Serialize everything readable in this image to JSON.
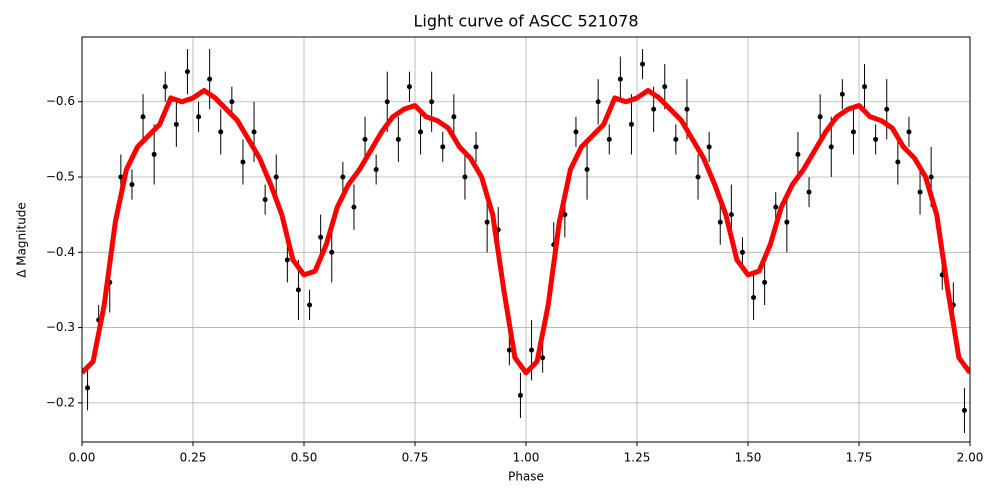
{
  "chart_data": {
    "type": "line",
    "title": "Light curve of ASCC 521078",
    "x_label": "Phase",
    "y_label": "Δ Magnitude",
    "xlim": [
      0,
      2
    ],
    "ylim": [
      -0.148,
      -0.686
    ],
    "xticks": [
      {
        "value": 0,
        "label": "0.00"
      },
      {
        "value": 0.25,
        "label": "0.25"
      },
      {
        "value": 0.5,
        "label": "0.50"
      },
      {
        "value": 0.75,
        "label": "0.75"
      },
      {
        "value": 1,
        "label": "1.00"
      },
      {
        "value": 1.25,
        "label": "1.25"
      },
      {
        "value": 1.5,
        "label": "1.50"
      },
      {
        "value": 1.75,
        "label": "1.75"
      },
      {
        "value": 2,
        "label": "2.00"
      }
    ],
    "yticks": [
      {
        "value": -0.6,
        "label": "−0.6"
      },
      {
        "value": -0.5,
        "label": "−0.5"
      },
      {
        "value": -0.4,
        "label": "−0.4"
      },
      {
        "value": -0.3,
        "label": "−0.3"
      },
      {
        "value": -0.2,
        "label": "−0.2"
      }
    ],
    "grid": true,
    "series": [
      {
        "type": "errorbar",
        "color": "#000000",
        "x": [
          0.0125,
          0.0375,
          0.0625,
          0.0875,
          0.1125,
          0.1375,
          0.1625,
          0.1875,
          0.2125,
          0.2375,
          0.2625,
          0.2875,
          0.3125,
          0.3375,
          0.3625,
          0.3875,
          0.4125,
          0.4375,
          0.4625,
          0.4875,
          0.5125,
          0.5375,
          0.5625,
          0.5875,
          0.6125,
          0.6375,
          0.6625,
          0.6875,
          0.7125,
          0.7375,
          0.7625,
          0.7875,
          0.8125,
          0.8375,
          0.8625,
          0.8875,
          0.9125,
          0.9375,
          0.9625,
          0.9875,
          1.0125,
          1.0375,
          1.0625,
          1.0875,
          1.1125,
          1.1375,
          1.1625,
          1.1875,
          1.2125,
          1.2375,
          1.2625,
          1.2875,
          1.3125,
          1.3375,
          1.3625,
          1.3875,
          1.4125,
          1.4375,
          1.4625,
          1.4875,
          1.5125,
          1.5375,
          1.5625,
          1.5875,
          1.6125,
          1.6375,
          1.6625,
          1.6875,
          1.7125,
          1.7375,
          1.7625,
          1.7875,
          1.8125,
          1.8375,
          1.8625,
          1.8875,
          1.9125,
          1.9375,
          1.9625,
          1.9875
        ],
        "values": [
          -0.22,
          -0.31,
          -0.36,
          -0.5,
          -0.49,
          -0.58,
          -0.53,
          -0.62,
          -0.57,
          -0.64,
          -0.58,
          -0.63,
          -0.56,
          -0.6,
          -0.52,
          -0.56,
          -0.47,
          -0.5,
          -0.39,
          -0.35,
          -0.33,
          -0.42,
          -0.4,
          -0.5,
          -0.46,
          -0.55,
          -0.51,
          -0.6,
          -0.55,
          -0.62,
          -0.56,
          -0.6,
          -0.54,
          -0.58,
          -0.5,
          -0.54,
          -0.44,
          -0.43,
          -0.27,
          -0.21,
          -0.27,
          -0.26,
          -0.41,
          -0.45,
          -0.56,
          -0.51,
          -0.6,
          -0.55,
          -0.63,
          -0.57,
          -0.65,
          -0.59,
          -0.62,
          -0.55,
          -0.59,
          -0.5,
          -0.54,
          -0.44,
          -0.45,
          -0.4,
          -0.34,
          -0.36,
          -0.46,
          -0.44,
          -0.53,
          -0.48,
          -0.58,
          -0.54,
          -0.61,
          -0.56,
          -0.62,
          -0.55,
          -0.59,
          -0.52,
          -0.56,
          -0.48,
          -0.5,
          -0.37,
          -0.33,
          -0.19
        ],
        "errors": [
          0.03,
          0.02,
          0.04,
          0.03,
          0.02,
          0.03,
          0.04,
          0.02,
          0.03,
          0.03,
          0.02,
          0.04,
          0.03,
          0.02,
          0.03,
          0.04,
          0.02,
          0.03,
          0.03,
          0.04,
          0.02,
          0.03,
          0.04,
          0.02,
          0.03,
          0.03,
          0.02,
          0.04,
          0.03,
          0.02,
          0.03,
          0.04,
          0.02,
          0.03,
          0.03,
          0.02,
          0.04,
          0.03,
          0.02,
          0.03,
          0.04,
          0.02,
          0.03,
          0.03,
          0.02,
          0.04,
          0.03,
          0.02,
          0.03,
          0.04,
          0.02,
          0.03,
          0.03,
          0.02,
          0.04,
          0.03,
          0.02,
          0.03,
          0.04,
          0.02,
          0.03,
          0.03,
          0.02,
          0.04,
          0.03,
          0.02,
          0.03,
          0.04,
          0.02,
          0.03,
          0.03,
          0.02,
          0.04,
          0.03,
          0.02,
          0.03,
          0.04,
          0.02,
          0.03,
          0.03
        ]
      },
      {
        "type": "line",
        "color": "#ff0000",
        "x": [
          0,
          0.025,
          0.05,
          0.075,
          0.1,
          0.125,
          0.15,
          0.175,
          0.2,
          0.225,
          0.25,
          0.275,
          0.3,
          0.325,
          0.35,
          0.375,
          0.4,
          0.425,
          0.45,
          0.475,
          0.5,
          0.525,
          0.55,
          0.575,
          0.6,
          0.625,
          0.65,
          0.675,
          0.7,
          0.725,
          0.75,
          0.775,
          0.8,
          0.825,
          0.85,
          0.875,
          0.9,
          0.925,
          0.95,
          0.975,
          1,
          1.025,
          1.05,
          1.075,
          1.1,
          1.125,
          1.15,
          1.175,
          1.2,
          1.225,
          1.25,
          1.275,
          1.3,
          1.325,
          1.35,
          1.375,
          1.4,
          1.425,
          1.45,
          1.475,
          1.5,
          1.525,
          1.55,
          1.575,
          1.6,
          1.625,
          1.65,
          1.675,
          1.7,
          1.725,
          1.75,
          1.775,
          1.8,
          1.825,
          1.85,
          1.875,
          1.9,
          1.925,
          1.95,
          1.975,
          2
        ],
        "values": [
          -0.24,
          -0.255,
          -0.33,
          -0.44,
          -0.51,
          -0.54,
          -0.555,
          -0.57,
          -0.605,
          -0.6,
          -0.605,
          -0.615,
          -0.605,
          -0.59,
          -0.575,
          -0.55,
          -0.525,
          -0.49,
          -0.45,
          -0.39,
          -0.37,
          -0.375,
          -0.41,
          -0.46,
          -0.49,
          -0.51,
          -0.535,
          -0.56,
          -0.58,
          -0.59,
          -0.595,
          -0.58,
          -0.575,
          -0.565,
          -0.54,
          -0.525,
          -0.5,
          -0.45,
          -0.35,
          -0.26,
          -0.24,
          -0.255,
          -0.33,
          -0.44,
          -0.51,
          -0.54,
          -0.555,
          -0.57,
          -0.605,
          -0.6,
          -0.605,
          -0.615,
          -0.605,
          -0.59,
          -0.575,
          -0.55,
          -0.525,
          -0.49,
          -0.45,
          -0.39,
          -0.37,
          -0.375,
          -0.41,
          -0.46,
          -0.49,
          -0.51,
          -0.535,
          -0.56,
          -0.58,
          -0.59,
          -0.595,
          -0.58,
          -0.575,
          -0.565,
          -0.54,
          -0.525,
          -0.5,
          -0.45,
          -0.35,
          -0.26,
          -0.24
        ]
      }
    ]
  }
}
